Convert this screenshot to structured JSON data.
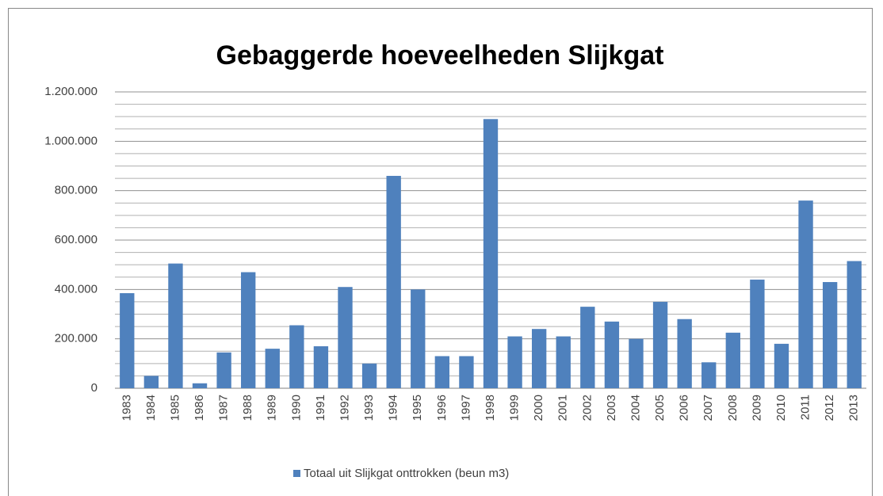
{
  "chart_data": {
    "type": "bar",
    "title": "Gebaggerde hoeveelheden Slijkgat",
    "categories": [
      "1983",
      "1984",
      "1985",
      "1986",
      "1987",
      "1988",
      "1989",
      "1990",
      "1991",
      "1992",
      "1993",
      "1994",
      "1995",
      "1996",
      "1997",
      "1998",
      "1999",
      "2000",
      "2001",
      "2002",
      "2003",
      "2004",
      "2005",
      "2006",
      "2007",
      "2008",
      "2009",
      "2010",
      "2011",
      "2012",
      "2013"
    ],
    "series": [
      {
        "name": "Totaal uit Slijkgat onttrokken (beun m3)",
        "color": "#4f81bd",
        "values": [
          385000,
          50000,
          505000,
          20000,
          145000,
          470000,
          160000,
          255000,
          170000,
          410000,
          100000,
          860000,
          400000,
          130000,
          130000,
          1090000,
          210000,
          240000,
          210000,
          330000,
          270000,
          200000,
          350000,
          280000,
          105000,
          225000,
          440000,
          180000,
          760000,
          430000,
          515000
        ]
      }
    ],
    "ylim": [
      0,
      1200000
    ],
    "yticks": [
      0,
      {
        "value": 200000,
        "label": "200.000"
      },
      {
        "value": 400000,
        "label": "400.000"
      },
      {
        "value": 600000,
        "label": "600.000"
      },
      {
        "value": 800000,
        "label": "800.000"
      },
      {
        "value": 1000000,
        "label": "1.000.000"
      },
      {
        "value": 1200000,
        "label": "1.200.000"
      }
    ],
    "minor_yticks": [
      50000,
      100000,
      150000,
      250000,
      300000,
      350000,
      450000,
      500000,
      550000,
      650000,
      700000,
      750000,
      850000,
      900000,
      950000,
      1050000,
      1100000,
      1150000
    ],
    "grid": true,
    "legend": "bottom"
  }
}
